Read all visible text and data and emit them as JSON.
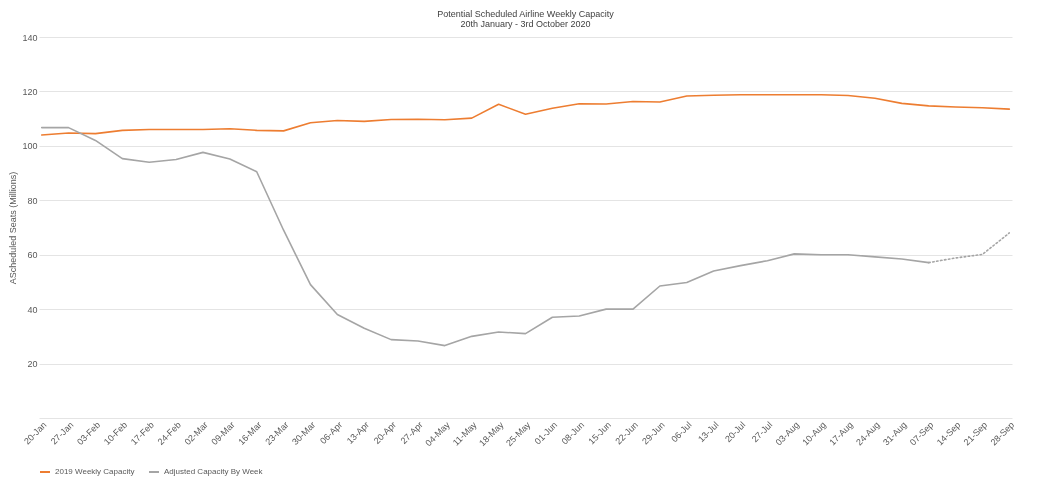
{
  "chart_data": {
    "type": "line",
    "title": "Potential Scheduled Airline Weekly Capacity",
    "subtitle": "20th January - 3rd October 2020",
    "ylabel": "AScheduled Seats (Millions)",
    "categories": [
      "20-Jan",
      "27-Jan",
      "03-Feb",
      "10-Feb",
      "17-Feb",
      "24-Feb",
      "02-Mar",
      "09-Mar",
      "16-Mar",
      "23-Mar",
      "30-Mar",
      "06-Apr",
      "13-Apr",
      "20-Apr",
      "27-Apr",
      "04-May",
      "11-May",
      "18-May",
      "25-May",
      "01-Jun",
      "08-Jun",
      "15-Jun",
      "22-Jun",
      "29-Jun",
      "06-Jul",
      "13-Jul",
      "20-Jul",
      "27-Jul",
      "03-Aug",
      "10-Aug",
      "17-Aug",
      "24-Aug",
      "31-Aug",
      "07-Sep",
      "14-Sep",
      "21-Sep",
      "28-Sep"
    ],
    "series": [
      {
        "name": "2019 Weekly Capacity",
        "color": "#ed7d31",
        "values": [
          104,
          104.7,
          104.5,
          105.7,
          106,
          106,
          106,
          106.3,
          105.7,
          105.5,
          108.5,
          109.3,
          109,
          109.7,
          109.8,
          109.6,
          110.2,
          115.3,
          111.6,
          113.8,
          115.5,
          115.4,
          116.3,
          116.1,
          118.3,
          118.6,
          118.8,
          118.8,
          118.8,
          118.8,
          118.5,
          117.5,
          115.6,
          114.7,
          114.3,
          114,
          113.5
        ]
      },
      {
        "name": "Adjusted Capacity By Week",
        "color": "#a5a5a5",
        "values": [
          106.7,
          106.7,
          102,
          95.3,
          94,
          95,
          97.6,
          95.2,
          90.5,
          69,
          49,
          38,
          33,
          28.8,
          28.3,
          26.6,
          30,
          31.6,
          31,
          37,
          37.5,
          40,
          40,
          48.5,
          49.8,
          54,
          56,
          57.8,
          60.3,
          60,
          60,
          59.2,
          58.4,
          57.1,
          null,
          null,
          null
        ]
      },
      {
        "color": "#a5a5a5",
        "line_style": "dotted",
        "values": [
          null,
          null,
          null,
          null,
          null,
          null,
          null,
          null,
          null,
          null,
          null,
          null,
          null,
          null,
          null,
          null,
          null,
          null,
          null,
          null,
          null,
          null,
          null,
          null,
          null,
          null,
          null,
          null,
          null,
          null,
          null,
          null,
          null,
          57.1,
          58.8,
          60.1,
          68
        ]
      }
    ],
    "ylim": [
      0,
      140
    ],
    "yticks": [
      {
        "value": 0,
        "label": null
      },
      20,
      40,
      60,
      80,
      100,
      120,
      140
    ],
    "grid": "y",
    "legend": "bottom",
    "line_style": "solid",
    "marker": "none"
  }
}
